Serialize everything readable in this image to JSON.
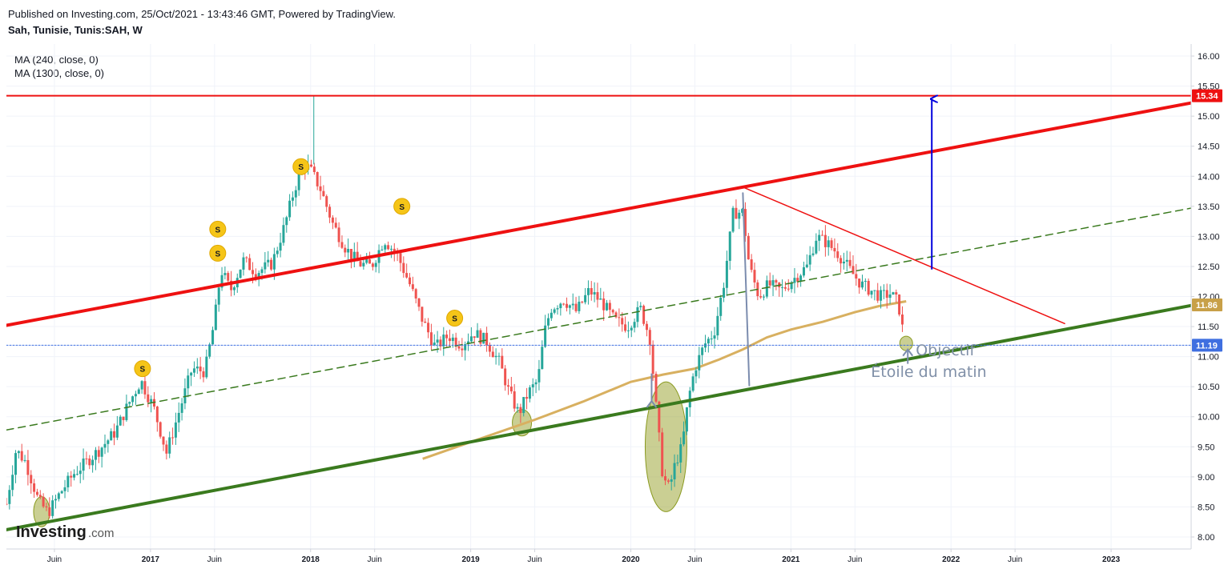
{
  "header": {
    "published": "Published on Investing.com, 25/Oct/2021 - 13:43:46 GMT, Powered by TradingView.",
    "symbol": "Sah, Tunisie, Tunis:SAH, W"
  },
  "indicators": {
    "ma240": "MA (240, close, 0)",
    "ma1300": "MA (1300, close, 0)"
  },
  "logo": {
    "main": "Investing",
    "suffix": ".com"
  },
  "colors": {
    "up": "#26a69a",
    "down": "#ef5350",
    "resistance": "#ee1111",
    "support": "#3a7a1e",
    "ma": "#d8b060",
    "target_arrow": "#0000dd",
    "annotation": "#7b8cae"
  },
  "chart_data": {
    "type": "candlestick",
    "timeframe": "W",
    "yaxis": {
      "min": 7.8,
      "max": 16.2,
      "ticks": [
        "16.00",
        "15.50",
        "15.00",
        "14.50",
        "14.00",
        "13.50",
        "13.00",
        "12.50",
        "12.00",
        "11.50",
        "11.00",
        "10.50",
        "10.00",
        "9.50",
        "9.00",
        "8.50",
        "8.00"
      ]
    },
    "xaxis": {
      "range": [
        2016.1,
        2023.5
      ],
      "ticks": [
        {
          "label": "Juin",
          "t": 2016.4,
          "year": false
        },
        {
          "label": "2017",
          "t": 2017.0,
          "year": true
        },
        {
          "label": "Juin",
          "t": 2017.4,
          "year": false
        },
        {
          "label": "2018",
          "t": 2018.0,
          "year": true
        },
        {
          "label": "Juin",
          "t": 2018.4,
          "year": false
        },
        {
          "label": "2019",
          "t": 2019.0,
          "year": true
        },
        {
          "label": "Juin",
          "t": 2019.4,
          "year": false
        },
        {
          "label": "2020",
          "t": 2020.0,
          "year": true
        },
        {
          "label": "Juin",
          "t": 2020.4,
          "year": false
        },
        {
          "label": "2021",
          "t": 2021.0,
          "year": true
        },
        {
          "label": "Juin",
          "t": 2021.4,
          "year": false
        },
        {
          "label": "2022",
          "t": 2022.0,
          "year": true
        },
        {
          "label": "Juin",
          "t": 2022.4,
          "year": false
        },
        {
          "label": "2023",
          "t": 2023.0,
          "year": true
        }
      ]
    },
    "price_badges": [
      {
        "value": "15.34",
        "y": 15.34,
        "color": "#ee1111"
      },
      {
        "value": "11.86",
        "y": 11.86,
        "color": "#c8a048"
      },
      {
        "value": "11.19",
        "y": 11.19,
        "color": "#3f6fe0"
      }
    ],
    "price_path": [
      [
        2016.1,
        8.55
      ],
      [
        2016.16,
        9.45
      ],
      [
        2016.22,
        9.25
      ],
      [
        2016.3,
        8.6
      ],
      [
        2016.36,
        8.4
      ],
      [
        2016.44,
        8.75
      ],
      [
        2016.52,
        9.05
      ],
      [
        2016.6,
        9.25
      ],
      [
        2016.68,
        9.45
      ],
      [
        2016.78,
        9.75
      ],
      [
        2016.86,
        10.2
      ],
      [
        2016.94,
        10.6
      ],
      [
        2017.02,
        10.15
      ],
      [
        2017.1,
        9.4
      ],
      [
        2017.18,
        10.1
      ],
      [
        2017.26,
        10.8
      ],
      [
        2017.34,
        10.75
      ],
      [
        2017.4,
        11.6
      ],
      [
        2017.44,
        12.45
      ],
      [
        2017.5,
        12.1
      ],
      [
        2017.58,
        12.6
      ],
      [
        2017.66,
        12.4
      ],
      [
        2017.76,
        12.55
      ],
      [
        2017.84,
        13.2
      ],
      [
        2017.9,
        13.8
      ],
      [
        2017.96,
        14.2
      ],
      [
        2018.0,
        14.1
      ],
      [
        2018.06,
        13.8
      ],
      [
        2018.14,
        13.2
      ],
      [
        2018.22,
        12.8
      ],
      [
        2018.3,
        12.55
      ],
      [
        2018.38,
        12.5
      ],
      [
        2018.46,
        12.95
      ],
      [
        2018.54,
        12.7
      ],
      [
        2018.62,
        12.2
      ],
      [
        2018.7,
        11.6
      ],
      [
        2018.78,
        11.15
      ],
      [
        2018.86,
        11.35
      ],
      [
        2018.94,
        11.2
      ],
      [
        2019.02,
        11.4
      ],
      [
        2019.1,
        11.25
      ],
      [
        2019.18,
        10.9
      ],
      [
        2019.24,
        10.4
      ],
      [
        2019.3,
        10.05
      ],
      [
        2019.36,
        10.4
      ],
      [
        2019.42,
        10.6
      ],
      [
        2019.46,
        11.4
      ],
      [
        2019.5,
        11.8
      ],
      [
        2019.58,
        11.95
      ],
      [
        2019.66,
        11.75
      ],
      [
        2019.74,
        12.1
      ],
      [
        2019.82,
        11.9
      ],
      [
        2019.9,
        11.6
      ],
      [
        2019.98,
        11.5
      ],
      [
        2020.06,
        11.8
      ],
      [
        2020.12,
        11.3
      ],
      [
        2020.16,
        10.1
      ],
      [
        2020.2,
        9.0
      ],
      [
        2020.24,
        8.8
      ],
      [
        2020.28,
        9.25
      ],
      [
        2020.32,
        9.5
      ],
      [
        2020.36,
        10.3
      ],
      [
        2020.4,
        10.8
      ],
      [
        2020.46,
        11.2
      ],
      [
        2020.52,
        11.4
      ],
      [
        2020.58,
        12.2
      ],
      [
        2020.64,
        13.4
      ],
      [
        2020.7,
        13.4
      ],
      [
        2020.74,
        12.5
      ],
      [
        2020.8,
        12.0
      ],
      [
        2020.86,
        12.2
      ],
      [
        2020.94,
        12.1
      ],
      [
        2021.02,
        12.3
      ],
      [
        2021.1,
        12.5
      ],
      [
        2021.16,
        13.0
      ],
      [
        2021.22,
        12.9
      ],
      [
        2021.3,
        12.7
      ],
      [
        2021.38,
        12.4
      ],
      [
        2021.44,
        12.2
      ],
      [
        2021.5,
        12.1
      ],
      [
        2021.56,
        12.0
      ],
      [
        2021.62,
        12.05
      ],
      [
        2021.67,
        11.9
      ],
      [
        2021.71,
        11.25
      ]
    ],
    "moving_average": [
      [
        2018.7,
        9.3
      ],
      [
        2019.0,
        9.58
      ],
      [
        2019.4,
        9.95
      ],
      [
        2019.7,
        10.25
      ],
      [
        2020.0,
        10.58
      ],
      [
        2020.2,
        10.7
      ],
      [
        2020.4,
        10.8
      ],
      [
        2020.55,
        10.95
      ],
      [
        2020.7,
        11.12
      ],
      [
        2020.85,
        11.32
      ],
      [
        2021.0,
        11.45
      ],
      [
        2021.2,
        11.58
      ],
      [
        2021.4,
        11.74
      ],
      [
        2021.55,
        11.84
      ],
      [
        2021.72,
        11.92
      ]
    ],
    "lines": [
      {
        "name": "resistance",
        "from": [
          2016.1,
          11.52
        ],
        "to": [
          2023.52,
          15.23
        ],
        "color": "#ee1111",
        "width": 4,
        "dash": false
      },
      {
        "name": "support",
        "from": [
          2016.1,
          8.12
        ],
        "to": [
          2023.52,
          11.86
        ],
        "color": "#3a7a1e",
        "width": 4,
        "dash": false
      },
      {
        "name": "mid-channel",
        "from": [
          2016.1,
          9.78
        ],
        "to": [
          2023.52,
          13.48
        ],
        "color": "#3a7a1e",
        "width": 1.5,
        "dash": true
      },
      {
        "name": "descending-trend",
        "from": [
          2020.7,
          13.82
        ],
        "to": [
          2022.71,
          11.55
        ],
        "color": "#ee1111",
        "width": 1.5,
        "dash": false
      },
      {
        "name": "horizontal-resistance",
        "from": [
          2016.1,
          15.34
        ],
        "to": [
          2023.52,
          15.34
        ],
        "color": "#ee1111",
        "width": 2,
        "dash": false
      },
      {
        "name": "last-price",
        "from": [
          2016.1,
          11.19
        ],
        "to": [
          2023.52,
          11.19
        ],
        "color": "#3f6fe0",
        "width": 1,
        "dash": "dot"
      },
      {
        "name": "measured-move",
        "from": [
          2020.74,
          10.52
        ],
        "to": [
          2020.7,
          13.72
        ],
        "color": "#7b8cae",
        "width": 2,
        "dash": false
      }
    ],
    "target_arrow": {
      "x": 2021.88,
      "from": 12.45,
      "to": 15.34
    },
    "small_arrows": [
      {
        "x": 2020.13,
        "from": 10.72,
        "to": 10.26
      },
      {
        "x": 2021.73,
        "from": 10.88,
        "to": 11.12
      }
    ],
    "ellipses": [
      {
        "t": 2016.32,
        "y": 8.42,
        "rx": 0.05,
        "ry": 0.25
      },
      {
        "t": 2019.32,
        "y": 9.9,
        "rx": 0.06,
        "ry": 0.22
      },
      {
        "t": 2020.22,
        "y": 9.5,
        "rx": 0.13,
        "ry": 1.08
      },
      {
        "t": 2021.72,
        "y": 11.22,
        "rx": 0.04,
        "ry": 0.12
      }
    ],
    "s_markers": [
      {
        "t": 2016.95,
        "y": 10.8
      },
      {
        "t": 2017.42,
        "y": 12.72
      },
      {
        "t": 2017.42,
        "y": 13.12
      },
      {
        "t": 2017.94,
        "y": 14.16
      },
      {
        "t": 2018.57,
        "y": 13.5
      },
      {
        "t": 2018.9,
        "y": 11.64
      }
    ],
    "annotations": [
      {
        "text": "Objectif",
        "t": 2021.78,
        "y": 11.02
      },
      {
        "text": "Étoile du matin",
        "t": 2021.5,
        "y": 10.66
      }
    ]
  }
}
